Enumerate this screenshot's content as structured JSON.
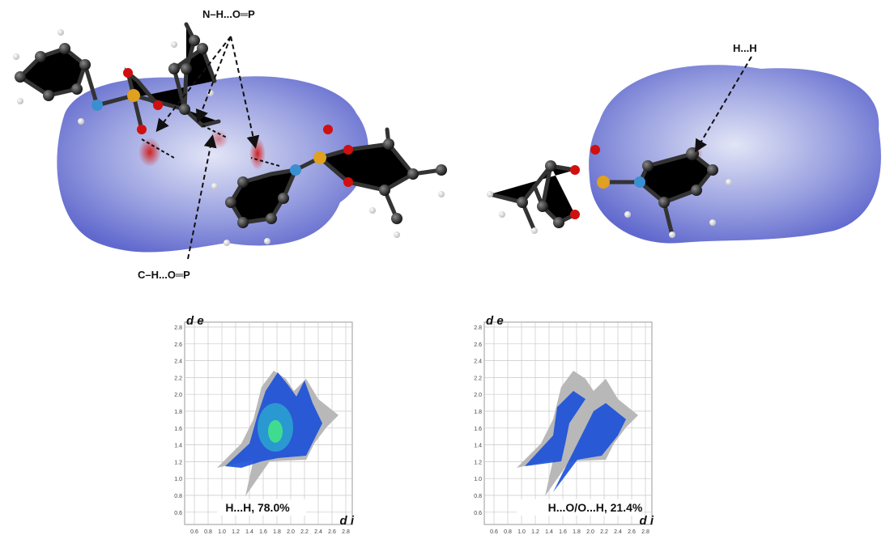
{
  "surfaces": {
    "annotations": [
      "N–H...O═P",
      "C–H...O═P",
      "H...H"
    ]
  },
  "fingerprint_plots": [
    {
      "label": "H...H, 78.0%",
      "y_axis_label": "d e",
      "x_axis_label": "d i",
      "yticks": [
        "2.8",
        "2.6",
        "2.4",
        "2.2",
        "2.0",
        "1.8",
        "1.6",
        "1.4",
        "1.2",
        "1.0",
        "0.8",
        "0.6"
      ],
      "xticks": [
        "0.6",
        "0.8",
        "1.0",
        "1.2",
        "1.4",
        "1.6",
        "1.8",
        "2.0",
        "2.2",
        "2.4",
        "2.6",
        "2.8"
      ]
    },
    {
      "label": "H...O/O...H, 21.4%",
      "y_axis_label": "d e",
      "x_axis_label": "d i",
      "yticks": [
        "2.8",
        "2.6",
        "2.4",
        "2.2",
        "2.0",
        "1.8",
        "1.6",
        "1.4",
        "1.2",
        "1.0",
        "0.8",
        "0.6"
      ],
      "xticks": [
        "0.6",
        "0.8",
        "1.0",
        "1.2",
        "1.4",
        "1.6",
        "1.8",
        "2.0",
        "2.2",
        "2.4",
        "2.6",
        "2.8"
      ]
    }
  ]
}
